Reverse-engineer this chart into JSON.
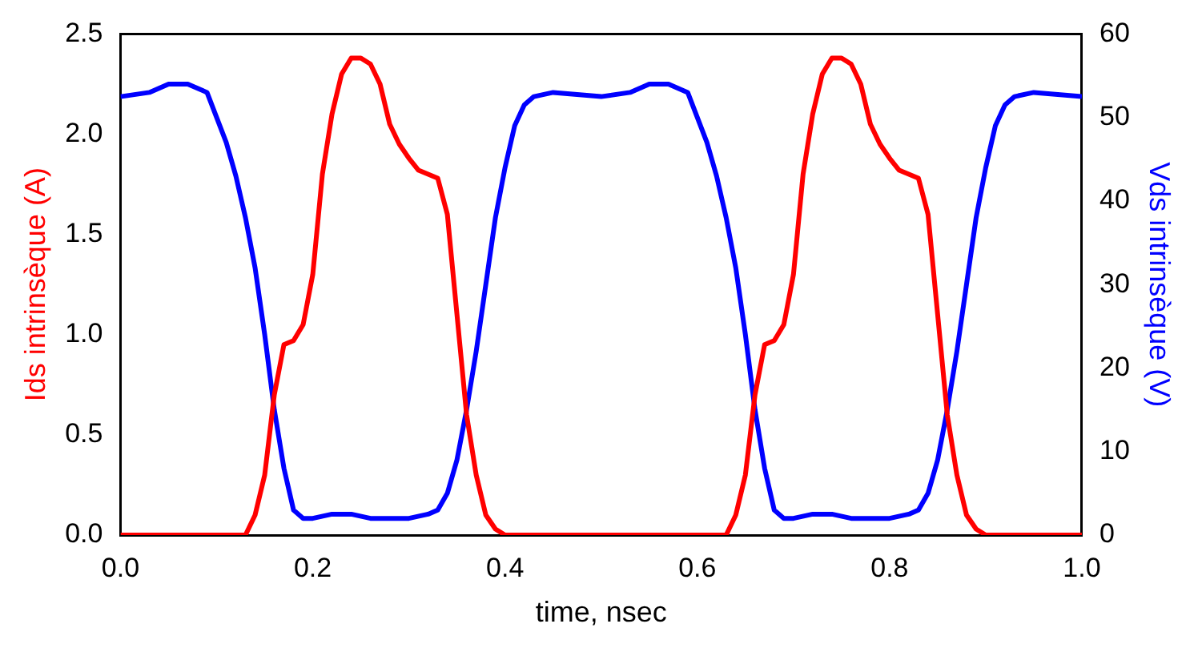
{
  "chart_data": {
    "type": "line",
    "xlabel": "time, nsec",
    "ylabel": "Ids intrinsèque (A)",
    "y2label": "Vds intrinsèque (V)",
    "xlim": [
      0,
      1
    ],
    "xticks": [
      {
        "value": 0,
        "label": "0.0"
      },
      0.2,
      0.4,
      0.6,
      0.8,
      {
        "value": 1,
        "label": "1.0"
      }
    ],
    "ylim": [
      0,
      2.5
    ],
    "yticks": [
      {
        "value": 0,
        "label": "0.0"
      },
      0.5,
      {
        "value": 1,
        "label": "1.0"
      },
      1.5,
      {
        "value": 2,
        "label": "2.0"
      },
      2.5
    ],
    "y2lim": [
      0,
      60
    ],
    "y2ticks": [
      0,
      10,
      20,
      30,
      40,
      50,
      60
    ],
    "grid": false,
    "legend": false,
    "marker": "none",
    "line_style": "solid",
    "series": [
      {
        "color": "#ff0000",
        "x": [
          0,
          0.05,
          0.1,
          0.12,
          0.13,
          0.14,
          0.15,
          0.16,
          0.17,
          0.18,
          0.19,
          0.2,
          0.21,
          0.22,
          0.23,
          0.24,
          0.25,
          0.26,
          0.27,
          0.28,
          0.29,
          0.3,
          0.31,
          0.32,
          0.33,
          0.34,
          0.35,
          0.36,
          0.37,
          0.38,
          0.39,
          0.4,
          0.42,
          0.5,
          0.55,
          0.6,
          0.62,
          0.63,
          0.64,
          0.65,
          0.66,
          0.67,
          0.68,
          0.69,
          0.7,
          0.71,
          0.72,
          0.73,
          0.74,
          0.75,
          0.76,
          0.77,
          0.78,
          0.79,
          0.8,
          0.81,
          0.82,
          0.83,
          0.84,
          0.85,
          0.86,
          0.87,
          0.88,
          0.89,
          0.9,
          0.92,
          1
        ],
        "values": [
          0,
          0,
          0,
          0,
          0,
          0.1,
          0.3,
          0.7,
          0.95,
          0.97,
          1.05,
          1.3,
          1.8,
          2.1,
          2.3,
          2.38,
          2.38,
          2.35,
          2.25,
          2.05,
          1.95,
          1.88,
          1.82,
          1.8,
          1.78,
          1.6,
          1.1,
          0.6,
          0.3,
          0.1,
          0.03,
          0,
          0,
          0,
          0,
          0,
          0,
          0,
          0.1,
          0.3,
          0.7,
          0.95,
          0.97,
          1.05,
          1.3,
          1.8,
          2.1,
          2.3,
          2.38,
          2.38,
          2.35,
          2.25,
          2.05,
          1.95,
          1.88,
          1.82,
          1.8,
          1.78,
          1.6,
          1.1,
          0.6,
          0.3,
          0.1,
          0.03,
          0,
          0,
          0
        ]
      },
      {
        "color": "#0000ff",
        "axis": "y2",
        "x": [
          0,
          0.03,
          0.05,
          0.07,
          0.09,
          0.1,
          0.11,
          0.12,
          0.13,
          0.14,
          0.15,
          0.16,
          0.17,
          0.18,
          0.19,
          0.2,
          0.22,
          0.24,
          0.26,
          0.28,
          0.3,
          0.32,
          0.33,
          0.34,
          0.35,
          0.36,
          0.37,
          0.38,
          0.39,
          0.4,
          0.41,
          0.42,
          0.43,
          0.45,
          0.5,
          0.53,
          0.55,
          0.57,
          0.59,
          0.6,
          0.61,
          0.62,
          0.63,
          0.64,
          0.65,
          0.66,
          0.67,
          0.68,
          0.69,
          0.7,
          0.72,
          0.74,
          0.76,
          0.78,
          0.8,
          0.82,
          0.83,
          0.84,
          0.85,
          0.86,
          0.87,
          0.88,
          0.89,
          0.9,
          0.91,
          0.92,
          0.93,
          0.95,
          1
        ],
        "values": [
          52.5,
          53,
          54,
          54,
          53,
          50,
          47,
          43,
          38,
          32,
          24,
          15,
          8,
          3,
          2,
          2,
          2.5,
          2.5,
          2,
          2,
          2,
          2.5,
          3,
          5,
          9,
          15,
          22,
          30,
          38,
          44,
          49,
          51.5,
          52.5,
          53,
          52.5,
          53,
          54,
          54,
          53,
          50,
          47,
          43,
          38,
          32,
          24,
          15,
          8,
          3,
          2,
          2,
          2.5,
          2.5,
          2,
          2,
          2,
          2.5,
          3,
          5,
          9,
          15,
          22,
          30,
          38,
          44,
          49,
          51.5,
          52.5,
          53,
          52.5
        ]
      }
    ]
  }
}
